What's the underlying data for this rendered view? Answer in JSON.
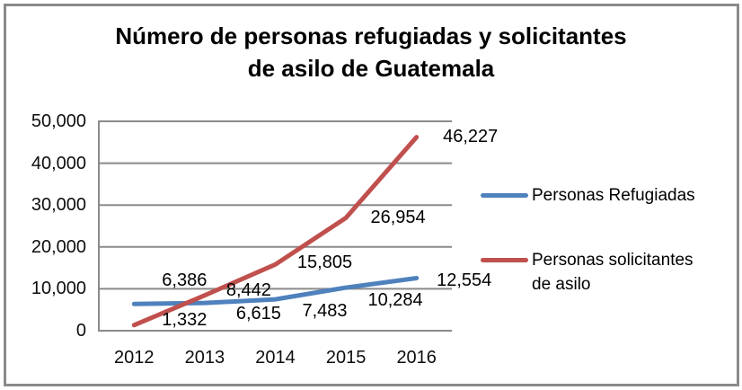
{
  "window": {
    "background": "#ffffff",
    "border_color": "#8a8a8a"
  },
  "chart_data": {
    "type": "line",
    "title": "Número de personas refugiadas y solicitantes de asilo de Guatemala",
    "title_lines": [
      "Número de personas refugiadas y solicitantes",
      "de asilo de Guatemala"
    ],
    "categories": [
      "2012",
      "2013",
      "2014",
      "2015",
      "2016"
    ],
    "series": [
      {
        "name": "Personas Refugiadas",
        "label_lines": [
          "Personas Refugiadas"
        ],
        "color": "#4F81BD",
        "values": [
          6386,
          6615,
          7483,
          10284,
          12554
        ],
        "value_labels": [
          "6,386",
          "6,615",
          "7,483",
          "10,284",
          "12,554"
        ]
      },
      {
        "name": "Personas solicitantes de asilo",
        "label_lines": [
          "Personas solicitantes",
          "de asilo"
        ],
        "color": "#C0504D",
        "values": [
          1332,
          8442,
          15805,
          26954,
          46227
        ],
        "value_labels": [
          "1,332",
          "8,442",
          "15,805",
          "26,954",
          "46,227"
        ]
      }
    ],
    "xlabel": "",
    "ylabel": "",
    "ylim": [
      0,
      50000
    ],
    "ytick_step": 10000,
    "ytick_labels": [
      "0",
      "10,000",
      "20,000",
      "30,000",
      "40,000",
      "50,000"
    ],
    "grid": "horizontal",
    "gridline_color": "#8a8a8a",
    "text_color": "#0d0d0d",
    "legend_position": "right",
    "label_offsets": [
      [
        [
          56,
          -26
        ],
        [
          60,
          12
        ],
        [
          55,
          13
        ],
        [
          55,
          14
        ],
        [
          53,
          3
        ]
      ],
      [
        [
          56,
          -6
        ],
        [
          49,
          -6
        ],
        [
          55,
          -2
        ],
        [
          58,
          0
        ],
        [
          60,
          -1
        ]
      ]
    ]
  }
}
